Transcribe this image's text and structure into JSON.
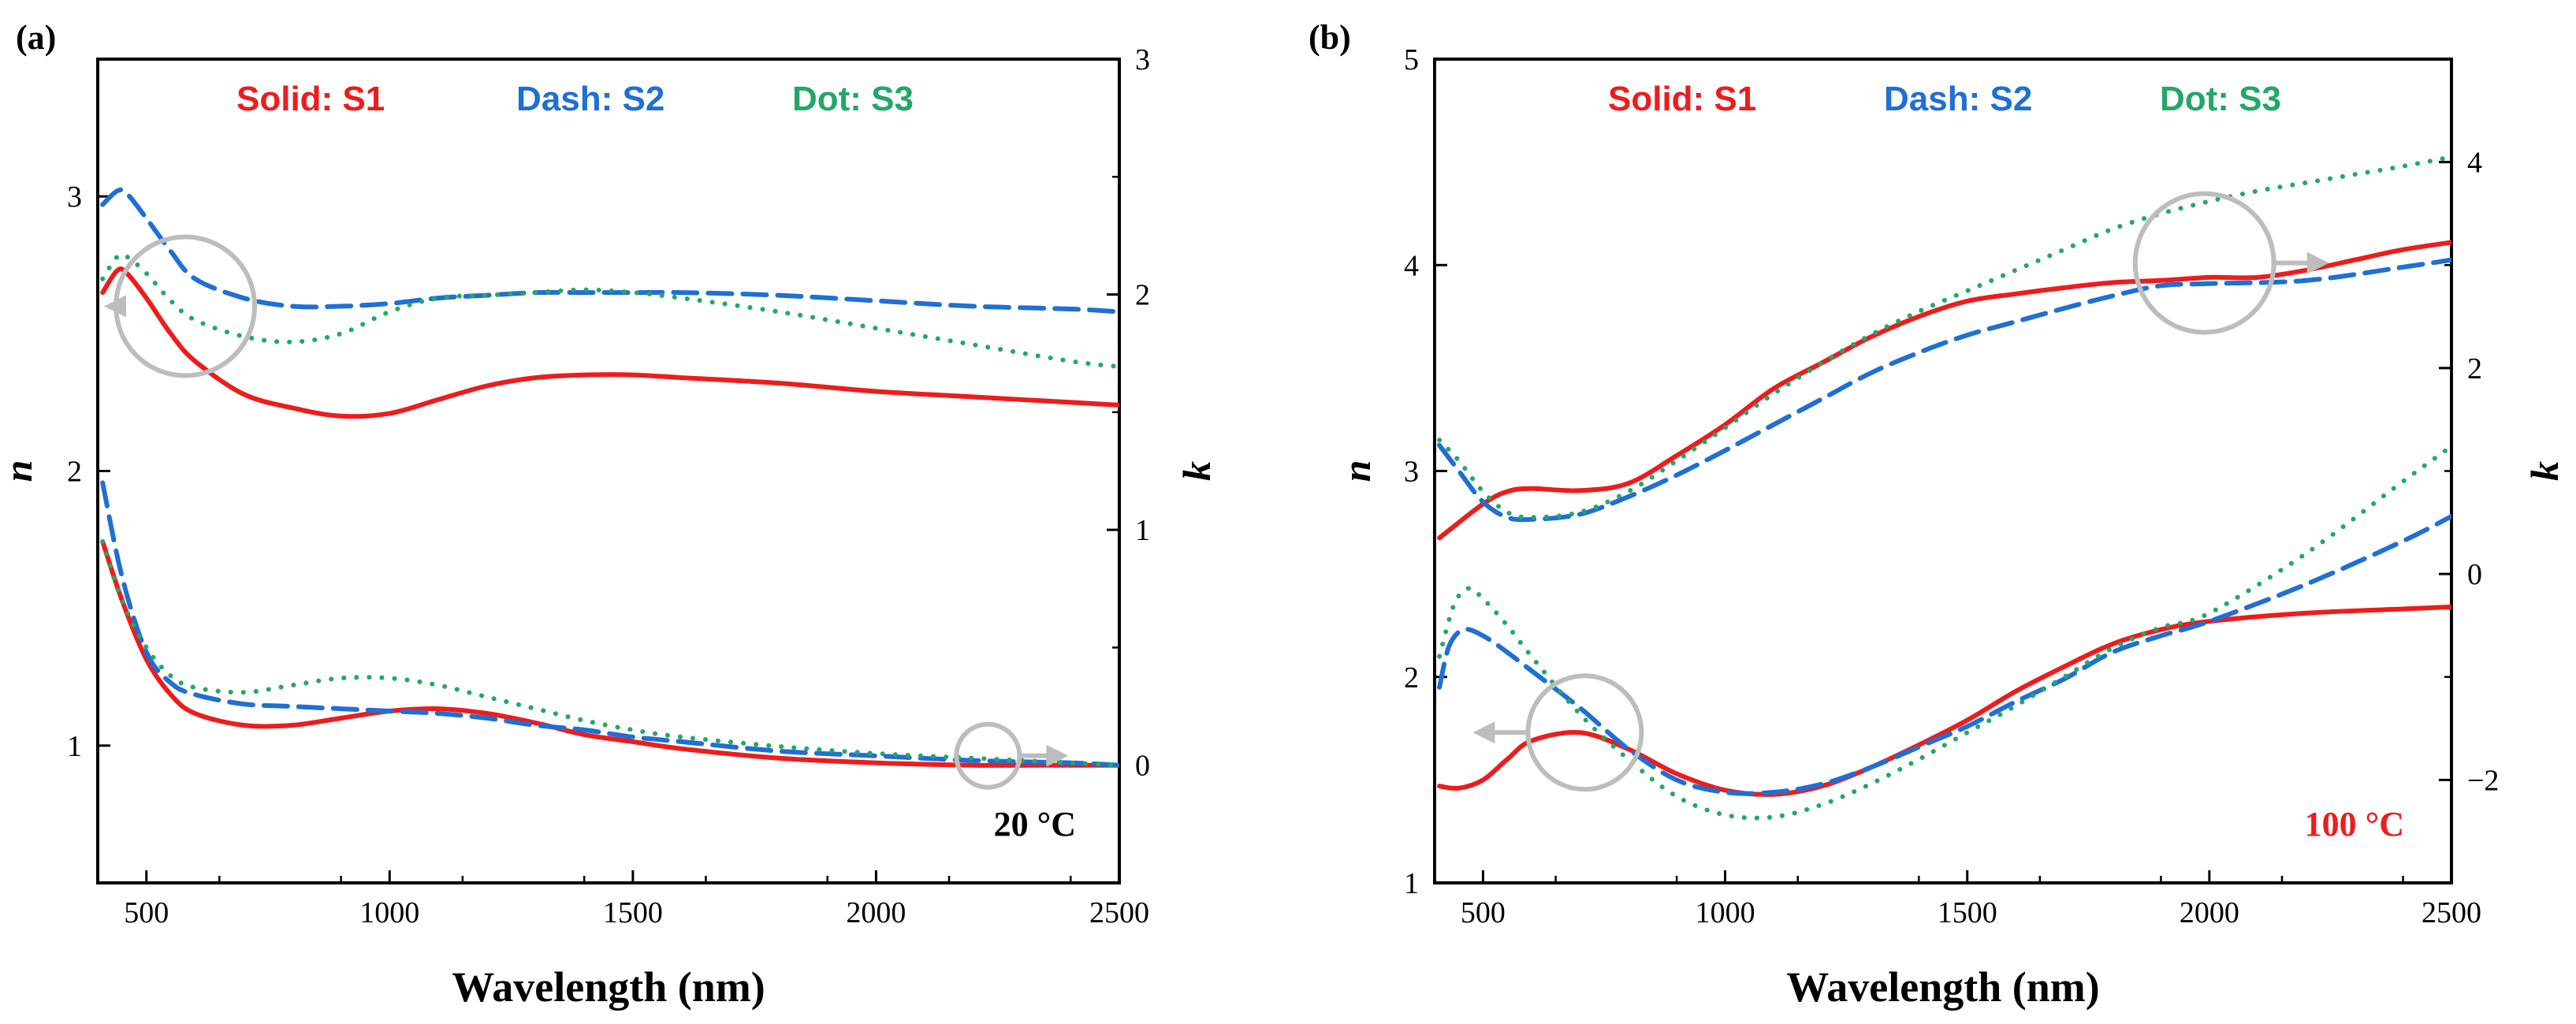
{
  "colors": {
    "S1": "#ee1c1c",
    "S2": "#1f6fd6",
    "S3": "#22a866",
    "annotation": "#bdbdbd",
    "temp_b": "#ee1c1c",
    "temp_a": "#000000"
  },
  "chart_data": [
    {
      "type": "line",
      "panel_label": "(a)",
      "xlabel": "Wavelength (nm)",
      "ylabel_left": "n",
      "ylabel_right": "k",
      "xlim": [
        400,
        2500
      ],
      "ylim_left": [
        0.5,
        3.5
      ],
      "ylim_right": [
        -0.5,
        3
      ],
      "xticks": [
        500,
        1000,
        1500,
        2000,
        2500
      ],
      "yticks_left": [
        1,
        2,
        3
      ],
      "yticks_right": [
        0,
        1,
        2,
        3
      ],
      "legend": [
        {
          "text": "Solid: S1",
          "series": "S1"
        },
        {
          "text": "Dash: S2",
          "series": "S2"
        },
        {
          "text": "Dot: S3",
          "series": "S3"
        }
      ],
      "annotation": "20 °C",
      "grid": false,
      "series": [
        {
          "sample": "S1",
          "quantity": "n",
          "axis": "left",
          "style": "solid",
          "x": [
            410,
            440,
            460,
            500,
            550,
            600,
            700,
            800,
            900,
            1000,
            1100,
            1200,
            1300,
            1400,
            1500,
            1600,
            1800,
            2000,
            2200,
            2400,
            2500
          ],
          "y": [
            2.65,
            2.73,
            2.72,
            2.63,
            2.5,
            2.4,
            2.28,
            2.23,
            2.2,
            2.21,
            2.26,
            2.31,
            2.34,
            2.35,
            2.35,
            2.34,
            2.32,
            2.29,
            2.27,
            2.25,
            2.24
          ]
        },
        {
          "sample": "S2",
          "quantity": "n",
          "axis": "left",
          "style": "dash",
          "x": [
            410,
            440,
            460,
            500,
            550,
            600,
            700,
            800,
            900,
            1000,
            1100,
            1200,
            1300,
            1400,
            1500,
            1600,
            1800,
            2000,
            2200,
            2400,
            2500
          ],
          "y": [
            2.97,
            3.02,
            3.01,
            2.92,
            2.8,
            2.7,
            2.63,
            2.6,
            2.6,
            2.61,
            2.63,
            2.64,
            2.65,
            2.65,
            2.65,
            2.65,
            2.64,
            2.62,
            2.6,
            2.59,
            2.58
          ]
        },
        {
          "sample": "S3",
          "quantity": "n",
          "axis": "left",
          "style": "dot",
          "x": [
            410,
            440,
            460,
            500,
            550,
            600,
            700,
            800,
            900,
            1000,
            1100,
            1200,
            1300,
            1400,
            1500,
            1600,
            1800,
            2000,
            2200,
            2400,
            2500
          ],
          "y": [
            2.7,
            2.78,
            2.78,
            2.72,
            2.62,
            2.55,
            2.49,
            2.47,
            2.5,
            2.58,
            2.63,
            2.64,
            2.65,
            2.66,
            2.65,
            2.63,
            2.58,
            2.52,
            2.46,
            2.4,
            2.38
          ]
        },
        {
          "sample": "S1",
          "quantity": "k",
          "axis": "right",
          "style": "solid",
          "x": [
            410,
            450,
            500,
            550,
            600,
            700,
            800,
            900,
            1000,
            1100,
            1200,
            1300,
            1400,
            1500,
            1600,
            1800,
            2000,
            2200,
            2400,
            2500
          ],
          "y": [
            0.95,
            0.7,
            0.45,
            0.3,
            0.22,
            0.17,
            0.17,
            0.2,
            0.23,
            0.24,
            0.22,
            0.18,
            0.13,
            0.1,
            0.07,
            0.03,
            0.01,
            0.0,
            0.0,
            0.0
          ]
        },
        {
          "sample": "S2",
          "quantity": "k",
          "axis": "right",
          "style": "dash",
          "x": [
            410,
            450,
            500,
            550,
            600,
            700,
            800,
            900,
            1000,
            1100,
            1200,
            1300,
            1400,
            1500,
            1600,
            1800,
            2000,
            2200,
            2400,
            2500
          ],
          "y": [
            1.2,
            0.8,
            0.48,
            0.35,
            0.3,
            0.26,
            0.25,
            0.24,
            0.23,
            0.22,
            0.2,
            0.17,
            0.15,
            0.12,
            0.1,
            0.06,
            0.04,
            0.02,
            0.01,
            0.0
          ]
        },
        {
          "sample": "S3",
          "quantity": "k",
          "axis": "right",
          "style": "dot",
          "x": [
            410,
            450,
            500,
            550,
            600,
            700,
            800,
            900,
            1000,
            1100,
            1200,
            1300,
            1400,
            1500,
            1600,
            1800,
            2000,
            2200,
            2400,
            2500
          ],
          "y": [
            0.95,
            0.7,
            0.5,
            0.38,
            0.33,
            0.31,
            0.34,
            0.37,
            0.37,
            0.34,
            0.29,
            0.24,
            0.19,
            0.15,
            0.12,
            0.08,
            0.05,
            0.03,
            0.01,
            0.0
          ]
        }
      ]
    },
    {
      "type": "line",
      "panel_label": "(b)",
      "xlabel": "Wavelength (nm)",
      "ylabel_left": "n",
      "ylabel_right": "k",
      "xlim": [
        400,
        2500
      ],
      "ylim_left": [
        1,
        5
      ],
      "ylim_right": [
        -3,
        5
      ],
      "xticks": [
        500,
        1000,
        1500,
        2000,
        2500
      ],
      "yticks_left": [
        1,
        2,
        3,
        4,
        5
      ],
      "yticks_right": [
        -2,
        0,
        2,
        4
      ],
      "legend": [
        {
          "text": "Solid: S1",
          "series": "S1"
        },
        {
          "text": "Dash: S2",
          "series": "S2"
        },
        {
          "text": "Dot: S3",
          "series": "S3"
        }
      ],
      "annotation": "100 °C",
      "grid": false,
      "series": [
        {
          "sample": "S1",
          "quantity": "n",
          "axis": "left",
          "style": "solid",
          "x": [
            410,
            450,
            500,
            550,
            600,
            700,
            800,
            900,
            1000,
            1100,
            1200,
            1300,
            1400,
            1500,
            1600,
            1700,
            1800,
            1900,
            2000,
            2200,
            2400,
            2500
          ],
          "y": [
            1.47,
            1.46,
            1.5,
            1.6,
            1.69,
            1.73,
            1.65,
            1.53,
            1.45,
            1.43,
            1.47,
            1.56,
            1.67,
            1.79,
            1.93,
            2.05,
            2.16,
            2.23,
            2.27,
            2.31,
            2.33,
            2.34
          ]
        },
        {
          "sample": "S2",
          "quantity": "n",
          "axis": "left",
          "style": "dash",
          "x": [
            410,
            430,
            460,
            500,
            550,
            600,
            700,
            800,
            900,
            1000,
            1100,
            1200,
            1300,
            1400,
            1500,
            1600,
            1700,
            1800,
            1900,
            2000,
            2200,
            2400,
            2500
          ],
          "y": [
            1.95,
            2.15,
            2.23,
            2.2,
            2.12,
            2.03,
            1.85,
            1.65,
            1.5,
            1.44,
            1.44,
            1.48,
            1.56,
            1.66,
            1.76,
            1.88,
            1.99,
            2.12,
            2.2,
            2.27,
            2.45,
            2.66,
            2.78
          ]
        },
        {
          "sample": "S3",
          "quantity": "n",
          "axis": "left",
          "style": "dot",
          "x": [
            410,
            440,
            470,
            500,
            550,
            600,
            700,
            800,
            900,
            1000,
            1100,
            1200,
            1300,
            1400,
            1500,
            1600,
            1700,
            1800,
            1900,
            2000,
            2200,
            2400,
            2500
          ],
          "y": [
            2.1,
            2.35,
            2.43,
            2.38,
            2.25,
            2.1,
            1.82,
            1.6,
            1.42,
            1.33,
            1.32,
            1.38,
            1.48,
            1.6,
            1.73,
            1.86,
            2.0,
            2.14,
            2.24,
            2.31,
            2.6,
            2.95,
            3.12
          ]
        },
        {
          "sample": "S1",
          "quantity": "k",
          "axis": "right",
          "style": "solid",
          "x": [
            410,
            500,
            550,
            600,
            700,
            800,
            900,
            1000,
            1100,
            1200,
            1300,
            1400,
            1500,
            1600,
            1700,
            1800,
            1900,
            2000,
            2100,
            2200,
            2300,
            2400,
            2500
          ],
          "y": [
            0.35,
            0.68,
            0.8,
            0.83,
            0.81,
            0.88,
            1.15,
            1.45,
            1.8,
            2.05,
            2.3,
            2.5,
            2.65,
            2.72,
            2.78,
            2.83,
            2.85,
            2.88,
            2.88,
            2.95,
            3.05,
            3.15,
            3.22
          ]
        },
        {
          "sample": "S2",
          "quantity": "k",
          "axis": "right",
          "style": "dash",
          "x": [
            410,
            450,
            500,
            550,
            600,
            700,
            800,
            900,
            1000,
            1100,
            1200,
            1300,
            1400,
            1500,
            1600,
            1700,
            1800,
            1900,
            2000,
            2200,
            2400,
            2500
          ],
          "y": [
            1.25,
            1.0,
            0.7,
            0.55,
            0.53,
            0.58,
            0.75,
            0.96,
            1.2,
            1.45,
            1.7,
            1.95,
            2.15,
            2.32,
            2.45,
            2.58,
            2.7,
            2.8,
            2.82,
            2.85,
            2.98,
            3.05
          ]
        },
        {
          "sample": "S3",
          "quantity": "k",
          "axis": "right",
          "style": "dot",
          "x": [
            410,
            450,
            500,
            550,
            600,
            700,
            800,
            900,
            1000,
            1100,
            1200,
            1300,
            1400,
            1500,
            1600,
            1700,
            1800,
            1900,
            2000,
            2100,
            2200,
            2300,
            2400,
            2500
          ],
          "y": [
            1.3,
            1.1,
            0.8,
            0.6,
            0.55,
            0.6,
            0.8,
            1.1,
            1.42,
            1.75,
            2.05,
            2.32,
            2.55,
            2.75,
            2.95,
            3.15,
            3.35,
            3.5,
            3.62,
            3.72,
            3.8,
            3.88,
            3.96,
            4.05
          ]
        }
      ]
    }
  ]
}
